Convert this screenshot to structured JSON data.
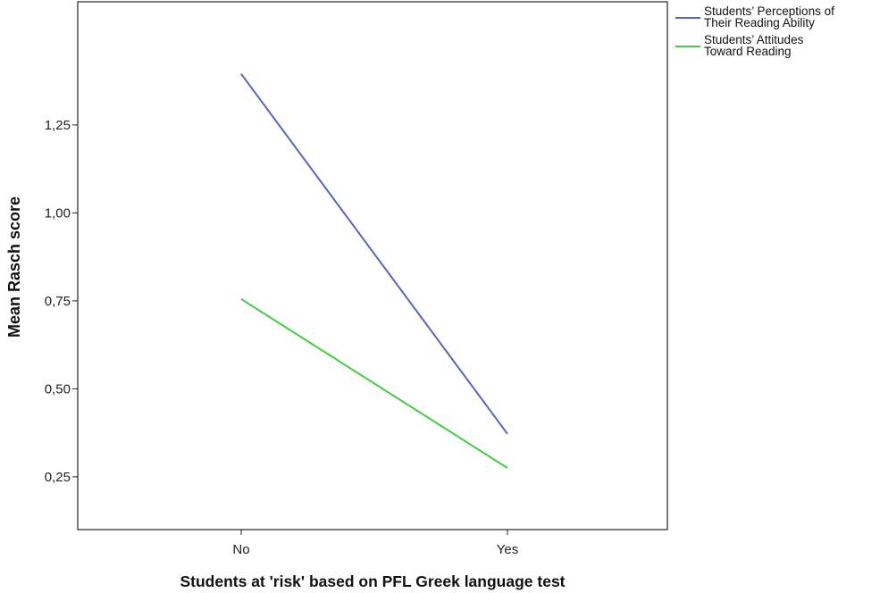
{
  "chart_data": {
    "type": "line",
    "title": "",
    "xlabel": "Students at 'risk' based on PFL Greek language test",
    "ylabel": "Mean Rasch score",
    "categories": [
      "No",
      "Yes"
    ],
    "ylim": [
      0.1,
      1.6
    ],
    "yticks": [
      0.25,
      0.5,
      0.75,
      1.0,
      1.25
    ],
    "ytick_labels": [
      "0,25",
      "0,50",
      "0,75",
      "1,00",
      "1,25"
    ],
    "grid": false,
    "legend_position": "top-right, outside plot",
    "series": [
      {
        "name": "Students’ Perceptions of Their Reading Ability",
        "name_lines": [
          "Students’ Perceptions of",
          "Their Reading Ability"
        ],
        "color": "#5566bb",
        "values": [
          1.395,
          0.372
        ]
      },
      {
        "name": "Students’ Attitudes Toward Reading",
        "name_lines": [
          "Students’ Attitudes",
          "Toward Reading"
        ],
        "color": "#44cc44",
        "values": [
          0.755,
          0.275
        ]
      }
    ]
  }
}
